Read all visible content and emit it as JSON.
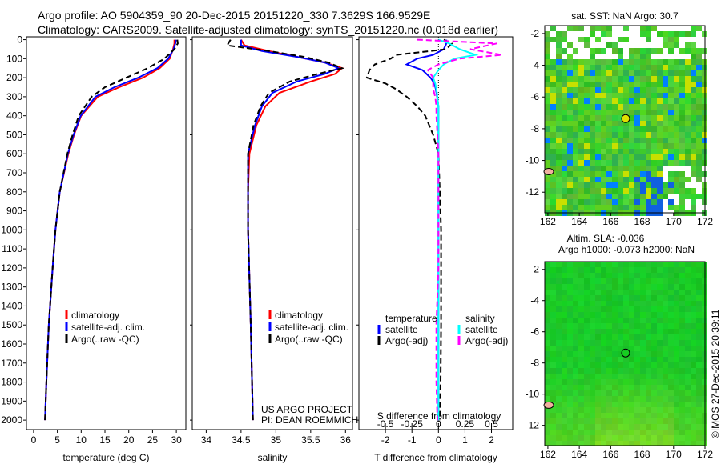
{
  "header": {
    "line1": "Argo profile: AO 5904359_90 20-Dec-2015 20151220_330 7.3629S 166.9529E",
    "line2": "Climatology: CARS2009. Satellite-adjusted climatology: synTS_20151220.nc (0.018d earlier)"
  },
  "credit": "©IMOS 27-Dec-2015 20:39:11",
  "colors": {
    "climatology": "#ff0000",
    "satellite": "#0000ff",
    "argo": "#000000",
    "sal_satellite": "#00ffff",
    "sal_argo": "#ff00ff"
  },
  "chart_data": [
    {
      "type": "line",
      "id": "temperature",
      "xlabel": "temperature (deg C)",
      "ylabel": "depth",
      "xlim": [
        -1.5,
        32
      ],
      "ylim": [
        2050,
        -15
      ],
      "xticks": [
        0,
        5,
        10,
        15,
        20,
        25,
        30
      ],
      "yticks": [
        0,
        100,
        200,
        300,
        400,
        500,
        600,
        700,
        800,
        900,
        1000,
        1100,
        1200,
        1300,
        1400,
        1500,
        1600,
        1700,
        1800,
        1900,
        2000
      ],
      "legend": [
        "climatology",
        "satellite-adj. clim.",
        "Argo(..raw -QC)"
      ],
      "depth": [
        0,
        20,
        50,
        100,
        150,
        200,
        250,
        300,
        400,
        500,
        600,
        800,
        1000,
        1200,
        1500,
        1800,
        2000
      ],
      "series": [
        {
          "name": "climatology",
          "color": "#ff0000",
          "values": [
            29.6,
            29.6,
            29.3,
            28.6,
            26.5,
            23,
            18,
            13.5,
            10,
            8.5,
            7.3,
            5.5,
            4.6,
            4,
            3.2,
            2.7,
            2.4
          ]
        },
        {
          "name": "satellite-adj. clim.",
          "color": "#0000ff",
          "dash": false,
          "values": [
            29.9,
            29.8,
            29.4,
            28.3,
            26,
            22,
            17,
            13,
            9.9,
            8.4,
            7.2,
            5.5,
            4.6,
            4,
            3.2,
            2.7,
            2.4
          ]
        },
        {
          "name": "Argo(..raw -QC)",
          "color": "#000000",
          "dash": true,
          "values": [
            30.2,
            30.3,
            29.6,
            27.5,
            24,
            19.5,
            15,
            12.2,
            9.5,
            8.2,
            7.1,
            5.5,
            4.6,
            4,
            3.2,
            2.7,
            2.4
          ]
        }
      ]
    },
    {
      "type": "line",
      "id": "salinity",
      "xlabel": "salinity",
      "xlim": [
        33.8,
        36.1
      ],
      "ylim": [
        2050,
        -15
      ],
      "xticks": [
        34,
        34.5,
        35,
        35.5,
        36
      ],
      "legend": [
        "climatology",
        "satellite-adj. clim.",
        "Argo(..raw -QC)"
      ],
      "annotation": [
        "US ARGO PROJECT",
        "PI: DEAN ROEMMICH"
      ],
      "depth": [
        0,
        30,
        60,
        90,
        120,
        150,
        180,
        220,
        280,
        350,
        450,
        600,
        800,
        1000,
        1500,
        2000
      ],
      "series": [
        {
          "name": "climatology",
          "color": "#ff0000",
          "values": [
            34.5,
            34.55,
            34.9,
            35.3,
            35.7,
            35.95,
            35.85,
            35.5,
            35.05,
            34.85,
            34.72,
            34.62,
            34.6,
            34.6,
            34.64,
            34.67
          ]
        },
        {
          "name": "satellite-adj. clim.",
          "color": "#0000ff",
          "values": [
            34.5,
            34.5,
            34.8,
            35.3,
            35.7,
            35.9,
            35.7,
            35.3,
            34.95,
            34.8,
            34.7,
            34.6,
            34.6,
            34.6,
            34.64,
            34.67
          ]
        },
        {
          "name": "Argo(..raw -QC)",
          "color": "#000000",
          "dash": true,
          "values": [
            34.35,
            34.3,
            34.9,
            35.4,
            35.75,
            35.95,
            35.6,
            35.2,
            34.9,
            34.78,
            34.68,
            34.6,
            34.6,
            34.6,
            34.64,
            34.67
          ]
        }
      ]
    },
    {
      "type": "line",
      "id": "difference",
      "xlabel": "T difference from climatology",
      "xlabel2": "S difference from climatology",
      "xlim": [
        -3,
        2.8
      ],
      "ylim": [
        2050,
        -15
      ],
      "xticks": [
        -2,
        -1,
        0,
        1,
        2
      ],
      "xticks2": [
        -0.5,
        -0.25,
        0,
        0.25,
        0.5
      ],
      "legend_headers": [
        "temperature",
        "salinity"
      ],
      "legend": [
        "satellite",
        "Argo(-adj)",
        "satellite",
        "Argo(-adj)"
      ],
      "depth": [
        0,
        20,
        50,
        80,
        100,
        130,
        160,
        200,
        230,
        260,
        300,
        350,
        400,
        500,
        600,
        800,
        1000,
        1200,
        1500,
        1800,
        2000
      ],
      "series": [
        {
          "name": "T satellite",
          "color": "#0000ff",
          "unit": "T",
          "values": [
            0.3,
            0.3,
            0.2,
            -0.2,
            -0.8,
            -1.2,
            -0.6,
            -0.3,
            -0.15,
            -0.1,
            -0.05,
            0,
            0,
            0,
            0,
            0,
            0,
            0,
            0,
            0,
            0
          ]
        },
        {
          "name": "T Argo(-adj)",
          "color": "#000000",
          "dash": true,
          "unit": "T",
          "values": [
            0.2,
            0.5,
            0.3,
            -1.6,
            -1.8,
            -2.4,
            -2.6,
            -2.7,
            -2,
            -1.6,
            -1.2,
            -0.8,
            -0.5,
            -0.2,
            0,
            0.05,
            0.1,
            0.1,
            0.1,
            0.08,
            0.05
          ]
        },
        {
          "name": "S satellite",
          "color": "#00ffff",
          "unit": "S",
          "values": [
            0,
            0.1,
            0.2,
            0.35,
            0.15,
            0.05,
            0,
            -0.05,
            -0.03,
            -0.02,
            -0.01,
            0,
            0,
            0,
            0,
            0,
            0,
            0,
            0,
            0,
            0
          ]
        },
        {
          "name": "S Argo(-adj)",
          "color": "#ff00ff",
          "dash": true,
          "unit": "S",
          "values": [
            -0.2,
            0.55,
            0.3,
            0.6,
            0.2,
            0,
            -0.1,
            -0.05,
            -0.05,
            -0.05,
            -0.03,
            -0.02,
            -0.02,
            -0.01,
            0,
            0,
            0,
            0,
            -0.02,
            -0.02,
            -0.01
          ]
        }
      ]
    },
    {
      "type": "heatmap",
      "id": "sst_map",
      "title": "sat. SST: NaN Argo: 30.7",
      "xlim": [
        161.8,
        172
      ],
      "ylim": [
        -13.3,
        -1.5
      ],
      "xticks": [
        162,
        164,
        166,
        168,
        170,
        172
      ],
      "yticks": [
        -2,
        -4,
        -6,
        -8,
        -10,
        -12
      ],
      "argo_position": [
        166.95,
        -7.36
      ]
    },
    {
      "type": "heatmap",
      "id": "sla_map",
      "title": "Altim. SLA: -0.036",
      "subtitle": "Argo h1000: -0.073 h2000: NaN",
      "xlim": [
        161.8,
        172
      ],
      "ylim": [
        -13.3,
        -1.5
      ],
      "xticks": [
        162,
        164,
        166,
        168,
        170,
        172
      ],
      "yticks": [
        -2,
        -4,
        -6,
        -8,
        -10,
        -12
      ],
      "argo_position": [
        166.95,
        -7.36
      ]
    }
  ]
}
